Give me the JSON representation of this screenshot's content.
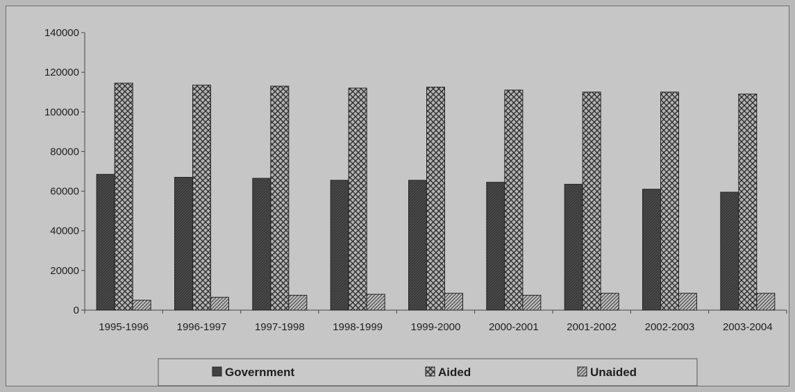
{
  "chart_data": {
    "type": "bar",
    "title": "",
    "xlabel": "",
    "ylabel": "",
    "categories": [
      "1995-1996",
      "1996-1997",
      "1997-1998",
      "1998-1999",
      "1999-2000",
      "2000-2001",
      "2001-2002",
      "2002-2003",
      "2003-2004"
    ],
    "series": [
      {
        "name": "Government",
        "values": [
          68500,
          67000,
          66500,
          65500,
          65500,
          64500,
          63500,
          61000,
          59500
        ],
        "color": "#3c3c3c",
        "pattern": "dark-solid"
      },
      {
        "name": "Aided",
        "values": [
          114500,
          113500,
          113000,
          112000,
          112500,
          111000,
          110000,
          110000,
          109000
        ],
        "color": "#9a9a9a",
        "pattern": "crosshatch"
      },
      {
        "name": "Unaided",
        "values": [
          5000,
          6500,
          7500,
          8000,
          8500,
          7500,
          8500,
          8500,
          8500
        ],
        "color": "#a4a4a4",
        "pattern": "diagonal"
      }
    ],
    "y_ticks": [
      0,
      20000,
      40000,
      60000,
      80000,
      100000,
      120000,
      140000
    ],
    "ylim": [
      0,
      140000
    ],
    "grid": false,
    "legend": {
      "position": "bottom",
      "entries": [
        "Government",
        "Aided",
        "Unaided"
      ]
    }
  }
}
